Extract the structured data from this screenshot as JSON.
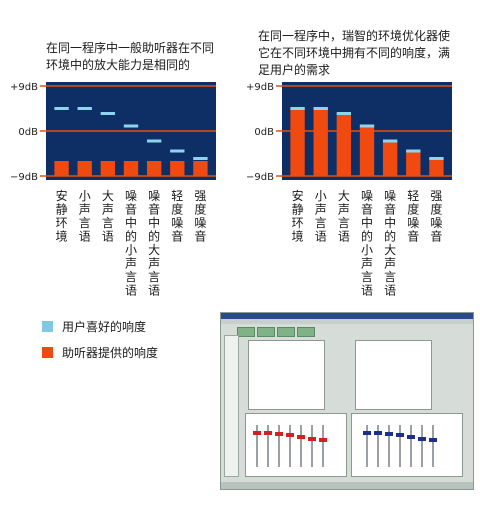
{
  "captions": {
    "left": "在同一程序中一般助听器在不同环境中的放大能力是相同的",
    "right": "在同一程序中，瑞智的环境优化器使它在不同环境中拥有不同的响度，满足用户的需求"
  },
  "legend": {
    "preferred": {
      "label": "用户喜好的响度",
      "color": "#7ec8e0"
    },
    "provided": {
      "label": "助听器提供的响度",
      "color": "#f04a10"
    }
  },
  "colors": {
    "panel_bg": "#0e2f66",
    "bar": "#f04a10",
    "marker": "#8fd4ec",
    "reference_line": "#e05010"
  },
  "chart_data": [
    {
      "type": "bar",
      "y_ticks": [
        "+9dB",
        "0dB",
        "−9dB"
      ],
      "ylim": [
        -9,
        9
      ],
      "categories": [
        "安静环境",
        "小声言语",
        "大声言语",
        "噪音中的小声言语",
        "噪音中的大声言语",
        "轻度噪音",
        "强度噪音"
      ],
      "series": [
        {
          "name": "用户喜好的响度",
          "values": [
            4.5,
            4.5,
            3.5,
            1,
            -2,
            -4,
            -5.5
          ]
        },
        {
          "name": "助听器提供的响度",
          "values": [
            -6,
            -6,
            -6,
            -6,
            -6,
            -6,
            -6
          ]
        }
      ]
    },
    {
      "type": "bar",
      "y_ticks": [
        "+9dB",
        "0dB",
        "−9dB"
      ],
      "ylim": [
        -9,
        9
      ],
      "categories": [
        "安静环境",
        "小声言语",
        "大声言语",
        "噪音中的小声言语",
        "噪音中的大声言语",
        "轻度噪音",
        "强度噪音"
      ],
      "series": [
        {
          "name": "用户喜好的响度",
          "values": [
            4.5,
            4.5,
            3.5,
            1,
            -2,
            -4,
            -5.5
          ]
        },
        {
          "name": "助听器提供的响度",
          "values": [
            4.5,
            4.5,
            3.5,
            1,
            -2,
            -4,
            -5.5
          ]
        }
      ]
    }
  ]
}
